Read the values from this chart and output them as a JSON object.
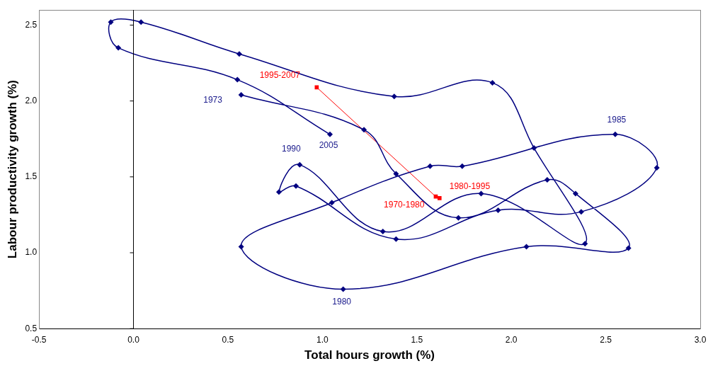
{
  "chart_data": {
    "type": "scatter",
    "xlabel": "Total hours growth (%)",
    "ylabel": "Labour productivity growth (%)",
    "xlim": [
      -0.5,
      3.0
    ],
    "ylim": [
      0.5,
      2.6
    ],
    "ref_lines": [
      {
        "axis": "x",
        "value": 0,
        "color": "#000000"
      }
    ],
    "xticks": [
      {
        "value": -0.5,
        "label": "-0.5"
      },
      {
        "value": 0,
        "label": "0.0"
      },
      {
        "value": 0.5,
        "label": "0.5"
      },
      {
        "value": 1,
        "label": "1.0"
      },
      {
        "value": 1.5,
        "label": "1.5"
      },
      {
        "value": 2,
        "label": "2.0"
      },
      {
        "value": 2.5,
        "label": "2.5"
      },
      {
        "value": 3,
        "label": "3.0"
      }
    ],
    "yticks": [
      {
        "value": 0.5,
        "label": "0.5"
      },
      {
        "value": 1,
        "label": "1.0"
      },
      {
        "value": 1.5,
        "label": "1.5"
      },
      {
        "value": 2,
        "label": "2.0"
      },
      {
        "value": 2.5,
        "label": "2.5"
      }
    ],
    "grid": false,
    "legend": false,
    "line_style": "solid",
    "series": [
      {
        "type": "line",
        "color": "#000080",
        "marker": "diamond",
        "x": [
          0.57,
          1.22,
          1.39,
          1.72,
          2.19,
          2.34,
          2.62,
          2.08,
          1.11,
          0.57,
          1.05,
          1.57,
          1.74,
          2.55,
          2.77,
          2.37,
          1.93,
          1.39,
          0.86,
          0.77,
          0.88,
          1.32,
          1.84,
          2.39,
          2.12,
          1.9,
          1.38,
          0.56,
          0.04,
          -0.12,
          -0.08,
          0.55,
          1.04
        ],
        "values": [
          2.04,
          1.81,
          1.52,
          1.23,
          1.48,
          1.39,
          1.03,
          1.04,
          0.76,
          1.04,
          1.33,
          1.57,
          1.57,
          1.78,
          1.56,
          1.27,
          1.28,
          1.09,
          1.44,
          1.4,
          1.58,
          1.14,
          1.39,
          1.06,
          1.69,
          2.12,
          2.03,
          2.31,
          2.52,
          2.52,
          2.35,
          2.14,
          1.78
        ]
      },
      {
        "type": "line",
        "color": "#ff0000",
        "marker": "square",
        "x": [
          1.62,
          1.6,
          0.97
        ],
        "values": [
          1.36,
          1.37,
          2.09
        ]
      }
    ],
    "annotations": [
      {
        "text": "1973",
        "x": 0.57,
        "y": 2.04
      },
      {
        "text": "1980",
        "x": 1.11,
        "y": 0.76
      },
      {
        "text": "1985",
        "x": 2.55,
        "y": 1.78
      },
      {
        "text": "1990",
        "x": 0.88,
        "y": 1.58
      },
      {
        "text": "2005",
        "x": 1.04,
        "y": 1.78
      },
      {
        "text": "1970-1980",
        "x": 1.62,
        "y": 1.36
      },
      {
        "text": "1980-1995",
        "x": 1.6,
        "y": 1.37
      },
      {
        "text": "1995-2007",
        "x": 0.97,
        "y": 2.09
      }
    ]
  }
}
